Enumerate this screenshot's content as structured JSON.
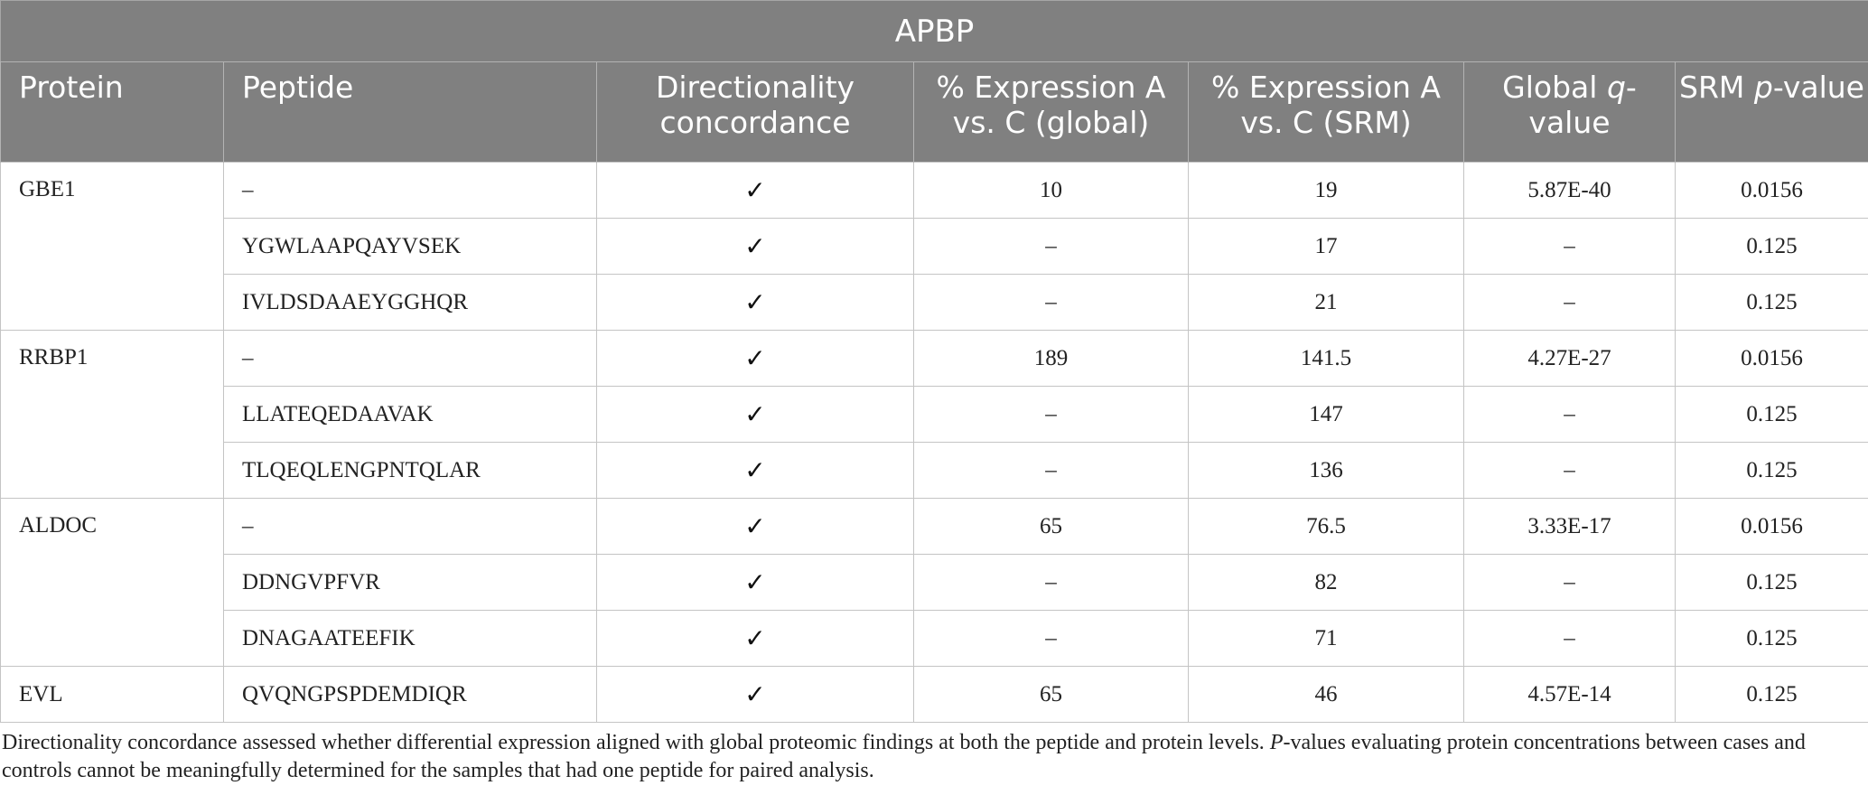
{
  "table": {
    "title": "APBP",
    "headers": {
      "protein": "Protein",
      "peptide": "Peptide",
      "directionality": "Directionality concordance",
      "expr_global": "% Expression A vs. C (global)",
      "expr_srm": "% Expression A vs. C (SRM)",
      "global_q_pre": "Global ",
      "global_q_italic": "q",
      "global_q_post": "-value",
      "srm_p_pre": "SRM ",
      "srm_p_italic": "p",
      "srm_p_post": "-value"
    },
    "groups": [
      {
        "protein": "GBE1",
        "rows": [
          {
            "peptide": "–",
            "concordance": "✓",
            "expr_global": "10",
            "expr_srm": "19",
            "q_value": "5.87E-40",
            "p_value": "0.0156"
          },
          {
            "peptide": "YGWLAAPQAYVSEK",
            "concordance": "✓",
            "expr_global": "–",
            "expr_srm": "17",
            "q_value": "–",
            "p_value": "0.125"
          },
          {
            "peptide": "IVLDSDAAEYGGHQR",
            "concordance": "✓",
            "expr_global": "–",
            "expr_srm": "21",
            "q_value": "–",
            "p_value": "0.125"
          }
        ]
      },
      {
        "protein": "RRBP1",
        "rows": [
          {
            "peptide": "–",
            "concordance": "✓",
            "expr_global": "189",
            "expr_srm": "141.5",
            "q_value": "4.27E-27",
            "p_value": "0.0156"
          },
          {
            "peptide": "LLATEQEDAAVAK",
            "concordance": "✓",
            "expr_global": "–",
            "expr_srm": "147",
            "q_value": "–",
            "p_value": "0.125"
          },
          {
            "peptide": "TLQEQLENGPNTQLAR",
            "concordance": "✓",
            "expr_global": "–",
            "expr_srm": "136",
            "q_value": "–",
            "p_value": "0.125"
          }
        ]
      },
      {
        "protein": "ALDOC",
        "rows": [
          {
            "peptide": "–",
            "concordance": "✓",
            "expr_global": "65",
            "expr_srm": "76.5",
            "q_value": "3.33E-17",
            "p_value": "0.0156"
          },
          {
            "peptide": "DDNGVPFVR",
            "concordance": "✓",
            "expr_global": "–",
            "expr_srm": "82",
            "q_value": "–",
            "p_value": "0.125"
          },
          {
            "peptide": "DNAGAATEEFIK",
            "concordance": "✓",
            "expr_global": "–",
            "expr_srm": "71",
            "q_value": "–",
            "p_value": "0.125"
          }
        ]
      },
      {
        "protein": "EVL",
        "rows": [
          {
            "peptide": "QVQNGPSPDEMDIQR",
            "concordance": "✓",
            "expr_global": "65",
            "expr_srm": "46",
            "q_value": "4.57E-14",
            "p_value": "0.125"
          }
        ]
      }
    ]
  },
  "footnote": {
    "line1": "Directionality concordance assessed whether differential expression aligned with global proteomic findings at both the peptide and protein levels. ",
    "p_italic": "P",
    "line2": "-values evaluating protein concentrations between cases and controls cannot be meaningfully determined for the samples that had one peptide for paired analysis."
  }
}
